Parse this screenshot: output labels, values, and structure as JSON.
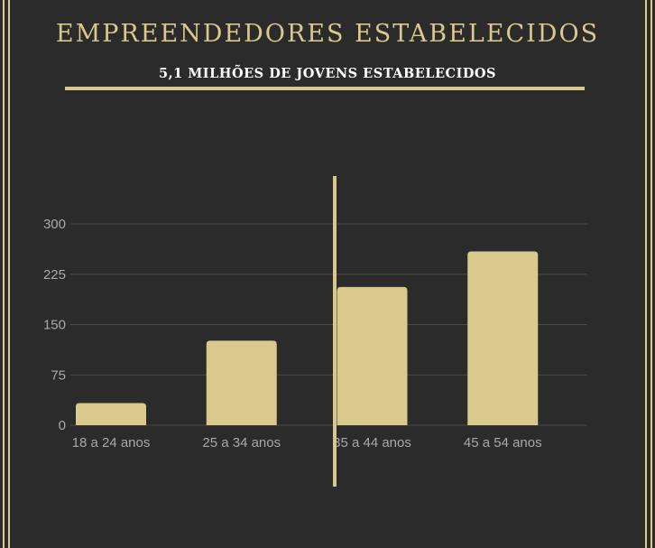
{
  "title": "EMPREENDEDORES ESTABELECIDOS",
  "subtitle": "5,1 MILHÕES DE JOVENS ESTABELECIDOS",
  "colors": {
    "background": "#2b2b2b",
    "accent": "#d9c78b",
    "bar": "#d9c98c",
    "grid": "#4a4a4a",
    "tick": "#a9a9a9"
  },
  "chart_data": {
    "type": "bar",
    "categories": [
      "18 a 24 anos",
      "25 a 34 anos",
      "35 a 44 anos",
      "45 a 54 anos"
    ],
    "values": [
      33,
      126,
      206,
      259
    ],
    "yticks": [
      0,
      75,
      150,
      225,
      300
    ],
    "ylim": [
      0,
      300
    ],
    "grid": true,
    "legend": "none",
    "annotation": "vertical divider line between 25 a 34 anos and 35 a 44 anos"
  }
}
